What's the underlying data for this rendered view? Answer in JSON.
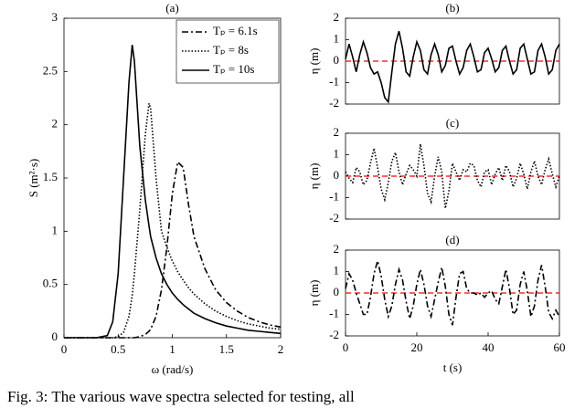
{
  "chart_data": [
    {
      "type": "line",
      "title": "(a)",
      "xlabel": "ω (rad/s)",
      "ylabel": "S (m²·s)",
      "x": [
        0,
        0.3,
        0.4,
        0.45,
        0.5,
        0.55,
        0.6,
        0.63,
        0.65,
        0.7,
        0.75,
        0.785,
        0.8,
        0.85,
        0.9,
        0.95,
        1.0,
        1.05,
        1.1,
        1.15,
        1.2,
        1.3,
        1.4,
        1.5,
        1.6,
        1.7,
        1.8,
        1.9,
        2.0
      ],
      "series": [
        {
          "name": "Tₚ = 6.1s",
          "color": "#000000",
          "style": "dash-dot",
          "values": [
            0,
            0,
            0,
            0,
            0,
            0,
            0,
            0,
            0,
            0.01,
            0.03,
            0.06,
            0.08,
            0.2,
            0.45,
            0.85,
            1.35,
            1.65,
            1.6,
            1.25,
            0.95,
            0.65,
            0.45,
            0.33,
            0.25,
            0.19,
            0.15,
            0.12,
            0.1
          ]
        },
        {
          "name": "Tₚ = 8s",
          "color": "#000000",
          "style": "dotted",
          "values": [
            0,
            0,
            0,
            0,
            0.01,
            0.05,
            0.2,
            0.4,
            0.6,
            1.2,
            1.9,
            2.2,
            2.15,
            1.5,
            1.0,
            0.85,
            0.72,
            0.62,
            0.54,
            0.47,
            0.41,
            0.32,
            0.25,
            0.2,
            0.16,
            0.13,
            0.11,
            0.09,
            0.08
          ]
        },
        {
          "name": "Tₚ = 10s",
          "color": "#000000",
          "style": "solid",
          "values": [
            0,
            0,
            0.02,
            0.15,
            0.6,
            1.5,
            2.4,
            2.75,
            2.6,
            1.8,
            1.3,
            1.05,
            0.95,
            0.75,
            0.6,
            0.5,
            0.42,
            0.36,
            0.31,
            0.27,
            0.23,
            0.18,
            0.14,
            0.11,
            0.09,
            0.07,
            0.06,
            0.05,
            0.04
          ]
        }
      ],
      "xlim": [
        0,
        2
      ],
      "xticks": [
        0,
        0.5,
        1,
        1.5,
        2
      ],
      "ylim": [
        0,
        3
      ],
      "yticks": [
        0,
        0.5,
        1,
        1.5,
        2,
        2.5,
        3
      ],
      "legend": "top-right"
    },
    {
      "type": "line",
      "title": "(b)",
      "ylabel": "η (m)",
      "x": [
        0,
        1,
        2,
        3,
        4,
        5,
        6,
        7,
        8,
        9,
        10,
        11,
        12,
        13,
        14,
        15,
        16,
        17,
        18,
        19,
        20,
        21,
        22,
        23,
        24,
        25,
        26,
        27,
        28,
        29,
        30,
        31,
        32,
        33,
        34,
        35,
        36,
        37,
        38,
        39,
        40,
        41,
        42,
        43,
        44,
        45,
        46,
        47,
        48,
        49,
        50,
        51,
        52,
        53,
        54,
        55,
        56,
        57,
        58,
        59,
        60
      ],
      "series": [
        {
          "color": "#000000",
          "style": "solid",
          "values": [
            0.1,
            0.8,
            0.2,
            -0.5,
            0.3,
            0.9,
            0.4,
            -0.3,
            -0.6,
            -0.5,
            -1.0,
            -1.7,
            -1.9,
            -0.5,
            0.8,
            1.4,
            0.6,
            -0.5,
            -0.7,
            0.2,
            0.9,
            0.5,
            -0.4,
            -0.6,
            0.3,
            0.8,
            0.3,
            -0.5,
            -0.2,
            0.6,
            0.7,
            0.0,
            -0.6,
            -0.3,
            0.5,
            0.8,
            0.2,
            -0.5,
            -0.4,
            0.4,
            0.6,
            0.1,
            -0.5,
            -0.3,
            0.5,
            0.7,
            0.0,
            -0.6,
            -0.4,
            0.6,
            0.8,
            0.1,
            -0.6,
            -0.5,
            0.5,
            0.8,
            0.2,
            -0.6,
            -0.4,
            0.5,
            0.8
          ]
        }
      ],
      "hline": {
        "value": 0,
        "color": "#ff0000"
      },
      "xlim": [
        0,
        60
      ],
      "ylim": [
        -2,
        2
      ],
      "yticks": [
        -2,
        -1,
        0,
        1,
        2
      ]
    },
    {
      "type": "line",
      "title": "(c)",
      "ylabel": "η (m)",
      "x": [
        0,
        1,
        2,
        3,
        4,
        5,
        6,
        7,
        8,
        9,
        10,
        11,
        12,
        13,
        14,
        15,
        16,
        17,
        18,
        19,
        20,
        21,
        22,
        23,
        24,
        25,
        26,
        27,
        28,
        29,
        30,
        31,
        32,
        33,
        34,
        35,
        36,
        37,
        38,
        39,
        40,
        41,
        42,
        43,
        44,
        45,
        46,
        47,
        48,
        49,
        50,
        51,
        52,
        53,
        54,
        55,
        56,
        57,
        58,
        59,
        60
      ],
      "series": [
        {
          "color": "#000000",
          "style": "dotted",
          "values": [
            0.2,
            -0.1,
            -0.3,
            0.4,
            0.2,
            -0.4,
            -0.2,
            0.6,
            1.3,
            0.4,
            -0.6,
            -1.1,
            -0.3,
            0.7,
            1.1,
            0.2,
            -0.4,
            0.1,
            0.5,
            0.3,
            0.0,
            1.5,
            0.5,
            -0.8,
            -1.2,
            0.0,
            0.9,
            0.2,
            -1.5,
            -0.7,
            0.6,
            0.2,
            -0.2,
            0.3,
            0.2,
            0.6,
            0.5,
            -0.2,
            -0.5,
            0.2,
            0.3,
            -0.4,
            0.1,
            0.4,
            -0.2,
            0.5,
            0.2,
            -0.5,
            -0.1,
            0.6,
            0.1,
            -0.6,
            0.2,
            0.7,
            0.0,
            -0.4,
            0.3,
            0.8,
            0.1,
            -0.5,
            0.0
          ]
        }
      ],
      "hline": {
        "value": 0,
        "color": "#ff0000"
      },
      "xlim": [
        0,
        60
      ],
      "ylim": [
        -2,
        2
      ],
      "yticks": [
        -2,
        -1,
        0,
        1,
        2
      ]
    },
    {
      "type": "line",
      "title": "(d)",
      "xlabel": "t (s)",
      "ylabel": "η (m)",
      "x": [
        0,
        1,
        2,
        3,
        4,
        5,
        6,
        7,
        8,
        9,
        10,
        11,
        12,
        13,
        14,
        15,
        16,
        17,
        18,
        19,
        20,
        21,
        22,
        23,
        24,
        25,
        26,
        27,
        28,
        29,
        30,
        31,
        32,
        33,
        34,
        35,
        36,
        37,
        38,
        39,
        40,
        41,
        42,
        43,
        44,
        45,
        46,
        47,
        48,
        49,
        50,
        51,
        52,
        53,
        54,
        55,
        56,
        57,
        58,
        59,
        60
      ],
      "series": [
        {
          "color": "#000000",
          "style": "dash-dot",
          "values": [
            0.2,
            0.9,
            0.6,
            0.0,
            -0.5,
            -1.0,
            -1.0,
            -0.2,
            0.9,
            1.5,
            0.8,
            -0.3,
            -1.1,
            -0.6,
            0.4,
            1.1,
            0.6,
            -0.4,
            -1.2,
            -0.6,
            0.4,
            1.1,
            0.4,
            -0.6,
            -1.1,
            -0.3,
            0.5,
            1.2,
            0.3,
            -1.0,
            -1.5,
            -0.2,
            0.9,
            1.0,
            0.2,
            0.0,
            0.0,
            -0.1,
            0.0,
            -0.2,
            0.0,
            0.1,
            -0.3,
            -0.5,
            0.3,
            1.1,
            0.2,
            -1.0,
            -0.8,
            0.4,
            1.0,
            0.1,
            -1.1,
            -0.6,
            0.6,
            1.3,
            0.3,
            -0.9,
            -1.2,
            -0.8,
            -1.1
          ]
        }
      ],
      "hline": {
        "value": 0,
        "color": "#ff0000"
      },
      "xlim": [
        0,
        60
      ],
      "xticks": [
        0,
        20,
        40,
        60
      ],
      "ylim": [
        -2,
        2
      ],
      "yticks": [
        -2,
        -1,
        0,
        1,
        2
      ]
    }
  ],
  "caption": "Fig. 3: The various wave spectra selected for testing, all"
}
